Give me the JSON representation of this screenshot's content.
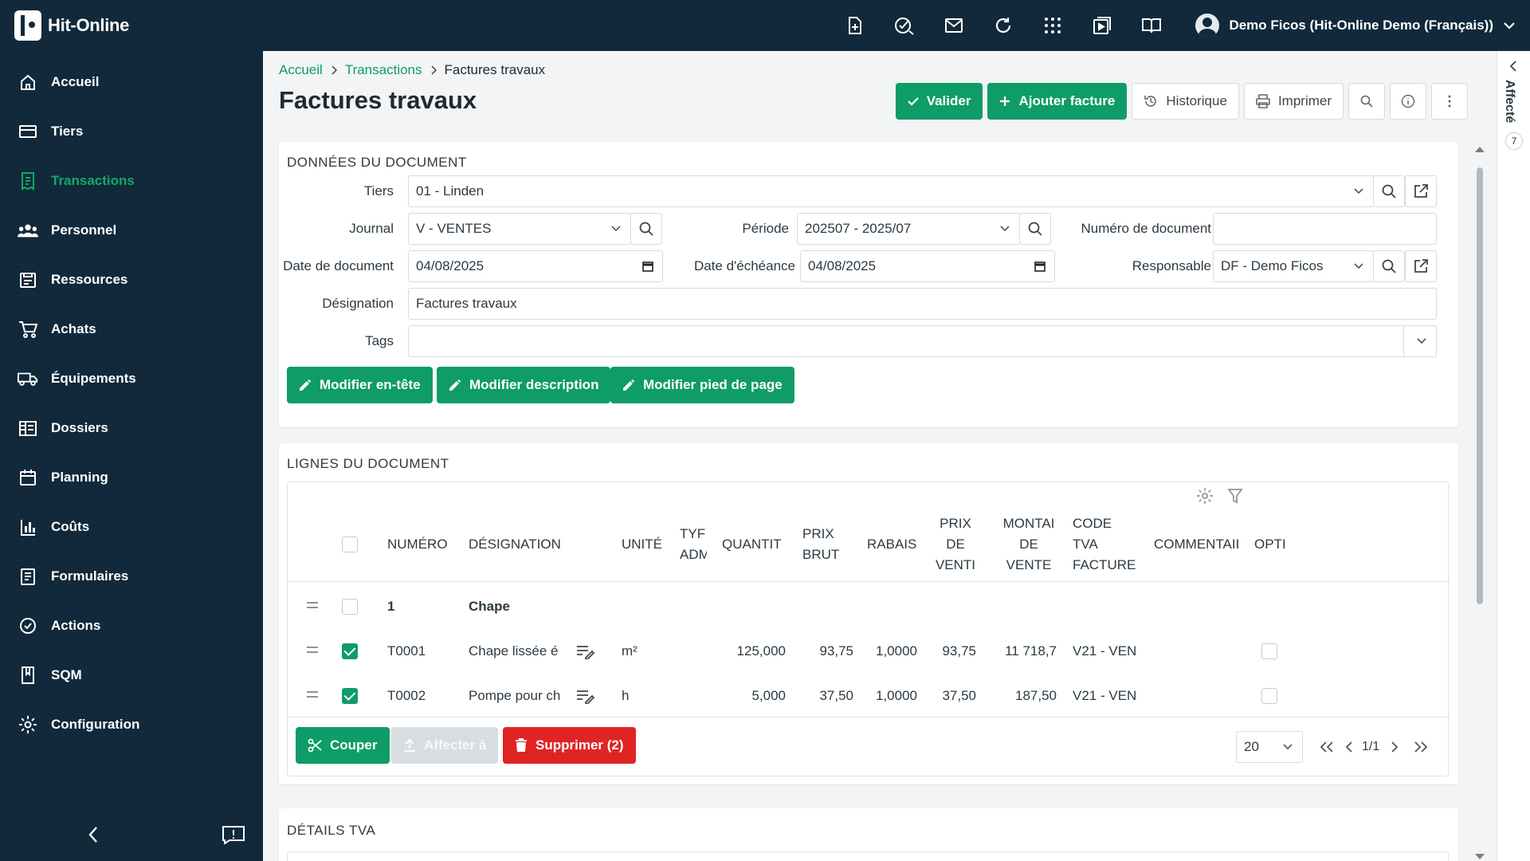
{
  "app": {
    "name": "Hit-Online"
  },
  "user": {
    "label": "Demo Ficos (Hit-Online Demo (Français))"
  },
  "top_icons": [
    "new-document-icon",
    "task-check-icon",
    "mail-icon",
    "refresh-icon",
    "apps-grid-icon",
    "video-icon",
    "book-icon"
  ],
  "sidebar": {
    "items": [
      {
        "label": "Accueil",
        "icon": "home-icon"
      },
      {
        "label": "Tiers",
        "icon": "card-icon"
      },
      {
        "label": "Transactions",
        "icon": "transactions-icon",
        "active": true
      },
      {
        "label": "Personnel",
        "icon": "people-icon"
      },
      {
        "label": "Ressources",
        "icon": "resources-icon"
      },
      {
        "label": "Achats",
        "icon": "cart-icon"
      },
      {
        "label": "Équipements",
        "icon": "truck-icon"
      },
      {
        "label": "Dossiers",
        "icon": "folders-icon"
      },
      {
        "label": "Planning",
        "icon": "calendar-icon"
      },
      {
        "label": "Coûts",
        "icon": "chart-icon"
      },
      {
        "label": "Formulaires",
        "icon": "form-icon"
      },
      {
        "label": "Actions",
        "icon": "check-circle-icon"
      },
      {
        "label": "SQM",
        "icon": "book-icon"
      },
      {
        "label": "Configuration",
        "icon": "gear-icon"
      }
    ]
  },
  "breadcrumb": {
    "home": "Accueil",
    "section": "Transactions",
    "current": "Factures travaux"
  },
  "page": {
    "title": "Factures travaux"
  },
  "toolbar": {
    "validate": "Valider",
    "add_invoice": "Ajouter facture",
    "history": "Historique",
    "print": "Imprimer"
  },
  "document": {
    "section_title": "DONNÉES DU DOCUMENT",
    "tiers": {
      "label": "Tiers",
      "value": "01 - Linden"
    },
    "journal": {
      "label": "Journal",
      "value": "V - VENTES"
    },
    "periode": {
      "label": "Période",
      "value": "202507 - 2025/07"
    },
    "numero": {
      "label": "Numéro de document",
      "value": ""
    },
    "date_doc": {
      "label": "Date de document",
      "value": "04/08/2025"
    },
    "date_echeance": {
      "label": "Date d'échéance",
      "value": "04/08/2025"
    },
    "responsable": {
      "label": "Responsable",
      "value": "DF - Demo Ficos"
    },
    "designation": {
      "label": "Désignation",
      "value": "Factures travaux"
    },
    "tags": {
      "label": "Tags",
      "value": ""
    },
    "buttons": {
      "edit_header": "Modifier en-tête",
      "edit_description": "Modifier description",
      "edit_footer": "Modifier pied de page"
    }
  },
  "lines": {
    "section_title": "LIGNES DU DOCUMENT",
    "columns": {
      "numero": "NUMÉRO",
      "designation": "DÉSIGNATION",
      "unite": "UNITÉ",
      "type": [
        "TYF",
        "ADM"
      ],
      "quantite": "QUANTIT",
      "prix_brut": [
        "PRIX",
        "BRUT"
      ],
      "rabais": "RABAIS",
      "prix_vente": [
        "PRIX",
        "DE",
        "VENTI"
      ],
      "montant": [
        "MONTAI",
        "DE",
        "VENTE"
      ],
      "code_tva": [
        "CODE",
        "TVA",
        "FACTURE"
      ],
      "commentaire": "COMMENTAII",
      "option": "OPTI"
    },
    "group": {
      "numero": "1",
      "designation": "Chape"
    },
    "rows": [
      {
        "checked": true,
        "numero": "T0001",
        "designation": "Chape lissée é",
        "unite": "m²",
        "quantite": "125,000",
        "prix_brut": "93,75",
        "rabais": "1,0000",
        "prix_vente": "93,75",
        "montant": "11 718,7",
        "code_tva": "V21 - VEN"
      },
      {
        "checked": true,
        "numero": "T0002",
        "designation": "Pompe pour ch",
        "unite": "h",
        "quantite": "5,000",
        "prix_brut": "37,50",
        "rabais": "1,0000",
        "prix_vente": "37,50",
        "montant": "187,50",
        "code_tva": "V21 - VEN"
      }
    ],
    "footer": {
      "cut": "Couper",
      "assign": "Affecter à",
      "delete": "Supprimer (2)",
      "page_size": "20",
      "page_info": "1/1"
    }
  },
  "tva": {
    "section_title": "DÉTAILS TVA"
  },
  "right_panel": {
    "tab": "Affecté",
    "count": "7"
  },
  "colors": {
    "brand_dark": "#11293a",
    "accent": "#0f9c68",
    "danger": "#e02424"
  }
}
